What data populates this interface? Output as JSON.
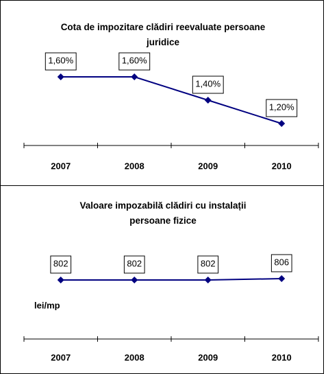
{
  "chart_data": [
    {
      "type": "line",
      "title": "Cota de impozitare clădiri reevaluate persoane juridice",
      "categories": [
        "2007",
        "2008",
        "2009",
        "2010"
      ],
      "values": [
        1.6,
        1.6,
        1.4,
        1.2
      ],
      "value_labels": [
        "1,60%",
        "1,60%",
        "1,40%",
        "1,20%"
      ],
      "color": "#000080"
    },
    {
      "type": "line",
      "title": "Valoare impozabilă clădiri cu instalații persoane fizice",
      "annotation": "lei/mp",
      "categories": [
        "2007",
        "2008",
        "2009",
        "2010"
      ],
      "values": [
        802,
        802,
        802,
        806
      ],
      "color": "#000080"
    }
  ]
}
